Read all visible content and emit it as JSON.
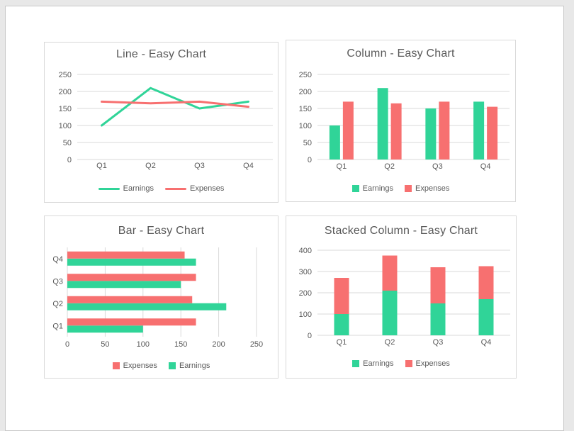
{
  "palette": {
    "earnings": "#30d498",
    "expenses": "#f77070",
    "grid": "#d9d9d9",
    "text": "#595959",
    "page_background": "#e8e8e8",
    "page_border": "#c8c8c8",
    "card_border": "#d9d9d9"
  },
  "chart_data": [
    {
      "type": "line",
      "orientation": "vertical",
      "stacked": false,
      "title": "Line - Easy Chart",
      "categories": [
        "Q1",
        "Q2",
        "Q3",
        "Q4"
      ],
      "series": [
        {
          "name": "Earnings",
          "color": "earnings",
          "values": [
            100,
            210,
            150,
            170
          ]
        },
        {
          "name": "Expenses",
          "color": "expenses",
          "values": [
            170,
            165,
            170,
            155
          ]
        }
      ],
      "ylim": [
        0,
        250
      ],
      "ystep": 50,
      "grid": true,
      "legend": {
        "position": "bottom",
        "marker": "line",
        "items": [
          "Earnings",
          "Expenses"
        ]
      }
    },
    {
      "type": "bar",
      "orientation": "vertical",
      "stacked": false,
      "title": "Column - Easy Chart",
      "categories": [
        "Q1",
        "Q2",
        "Q3",
        "Q4"
      ],
      "series": [
        {
          "name": "Earnings",
          "color": "earnings",
          "values": [
            100,
            210,
            150,
            170
          ]
        },
        {
          "name": "Expenses",
          "color": "expenses",
          "values": [
            170,
            165,
            170,
            155
          ]
        }
      ],
      "ylim": [
        0,
        250
      ],
      "ystep": 50,
      "grid": true,
      "legend": {
        "position": "bottom",
        "marker": "square",
        "items": [
          "Earnings",
          "Expenses"
        ]
      }
    },
    {
      "type": "bar",
      "orientation": "horizontal",
      "stacked": false,
      "title": "Bar - Easy Chart",
      "categories": [
        "Q1",
        "Q2",
        "Q3",
        "Q4"
      ],
      "series": [
        {
          "name": "Earnings",
          "color": "earnings",
          "values": [
            100,
            210,
            150,
            170
          ]
        },
        {
          "name": "Expenses",
          "color": "expenses",
          "values": [
            170,
            165,
            170,
            155
          ]
        }
      ],
      "xlim": [
        0,
        250
      ],
      "xstep": 50,
      "grid": true,
      "legend": {
        "position": "bottom",
        "marker": "square",
        "items": [
          "Expenses",
          "Earnings"
        ]
      }
    },
    {
      "type": "bar",
      "orientation": "vertical",
      "stacked": true,
      "title": "Stacked Column - Easy Chart",
      "categories": [
        "Q1",
        "Q2",
        "Q3",
        "Q4"
      ],
      "series": [
        {
          "name": "Earnings",
          "color": "earnings",
          "values": [
            100,
            210,
            150,
            170
          ]
        },
        {
          "name": "Expenses",
          "color": "expenses",
          "values": [
            170,
            165,
            170,
            155
          ]
        }
      ],
      "ylim": [
        0,
        400
      ],
      "ystep": 100,
      "grid": true,
      "legend": {
        "position": "bottom",
        "marker": "square",
        "items": [
          "Earnings",
          "Expenses"
        ]
      }
    }
  ]
}
